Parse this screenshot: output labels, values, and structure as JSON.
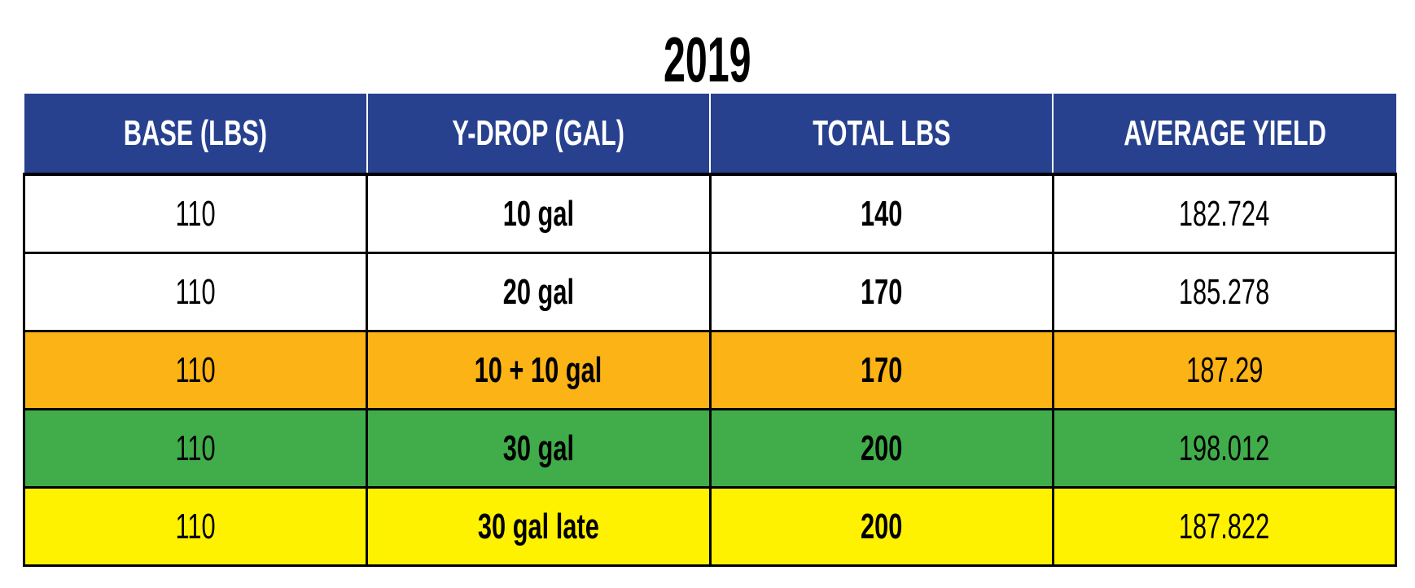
{
  "title": "2019",
  "columns": [
    "BASE (LBS)",
    "Y-DROP (GAL)",
    "TOTAL LBS",
    "AVERAGE YIELD"
  ],
  "header_color": "#27418f",
  "rows": [
    {
      "base": "110",
      "ydrop": "10 gal",
      "total": "140",
      "yield": "182.724",
      "color": "#ffffff"
    },
    {
      "base": "110",
      "ydrop": "20 gal",
      "total": "170",
      "yield": "185.278",
      "color": "#ffffff"
    },
    {
      "base": "110",
      "ydrop": "10 + 10 gal",
      "total": "170",
      "yield": "187.29",
      "color": "#fcb316"
    },
    {
      "base": "110",
      "ydrop": "30 gal",
      "total": "200",
      "yield": "198.012",
      "color": "#41ad4a"
    },
    {
      "base": "110",
      "ydrop": "30 gal late",
      "total": "200",
      "yield": "187.822",
      "color": "#fff200"
    }
  ]
}
